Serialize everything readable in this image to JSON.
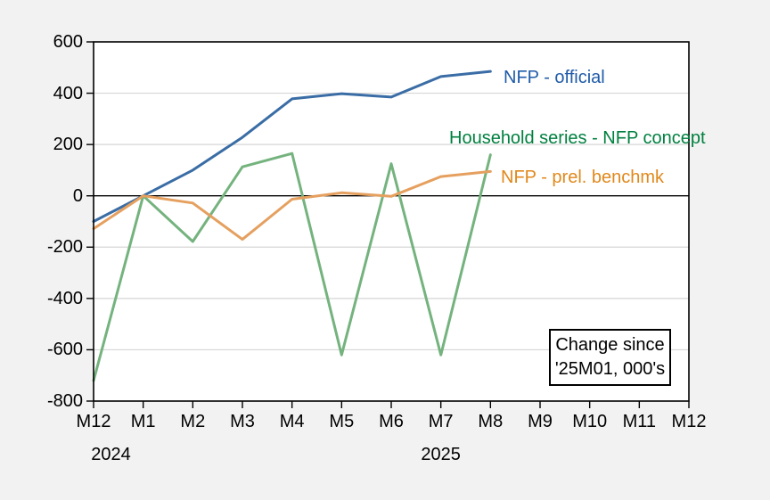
{
  "chart_data": {
    "type": "line",
    "x_categories": [
      "M12",
      "M1",
      "M2",
      "M3",
      "M4",
      "M5",
      "M6",
      "M7",
      "M8",
      "M9",
      "M10",
      "M11",
      "M12"
    ],
    "year_labels": [
      {
        "text": "2024",
        "index": 0.35
      },
      {
        "text": "2025",
        "index": 7.0
      }
    ],
    "yticks": [
      600,
      400,
      200,
      0,
      -200,
      -400,
      -600,
      -800
    ],
    "ylim": [
      -800,
      600
    ],
    "grid": "horizontal",
    "zero_line": true,
    "xlabel": "",
    "ylabel": "",
    "series": [
      {
        "label": "NFP - official",
        "line_color": "#3a6da5",
        "text_color": "#1f5ba8",
        "values": [
          -100,
          0,
          100,
          228,
          378,
          398,
          385,
          465,
          485
        ]
      },
      {
        "label": "Household series - NFP concept",
        "line_color": "#74b37e",
        "text_color": "#008040",
        "values": [
          -720,
          0,
          -178,
          113,
          165,
          -620,
          125,
          -620,
          160
        ]
      },
      {
        "label": "NFP - prel. benchmk",
        "line_color": "#e5a05f",
        "text_color": "#e0881a",
        "values": [
          -128,
          0,
          -28,
          -170,
          -13,
          12,
          -2,
          75,
          95
        ]
      }
    ]
  },
  "annotation": {
    "lines": [
      "Change since",
      "'25M01, 000's"
    ]
  },
  "colors": {
    "figure_background": "#f2f2f2",
    "plot_background": "#ffffff",
    "gridline": "#d6d6d6",
    "frame": "#000000"
  }
}
